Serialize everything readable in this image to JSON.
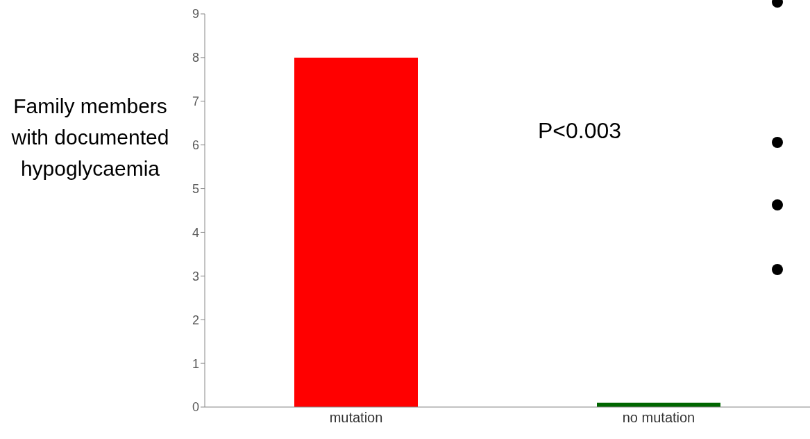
{
  "chart_data": {
    "type": "bar",
    "ylabel": "Family members with documented hypoglycaemia",
    "categories": [
      "mutation",
      "no mutation"
    ],
    "values": [
      8,
      0.1
    ],
    "colors": [
      "#ff0000",
      "#006600"
    ],
    "ylim": [
      0,
      9
    ],
    "yticks": [
      0,
      1,
      2,
      3,
      4,
      5,
      6,
      7,
      8,
      9
    ],
    "grid": false,
    "annotations": [
      "P<0.003"
    ]
  }
}
